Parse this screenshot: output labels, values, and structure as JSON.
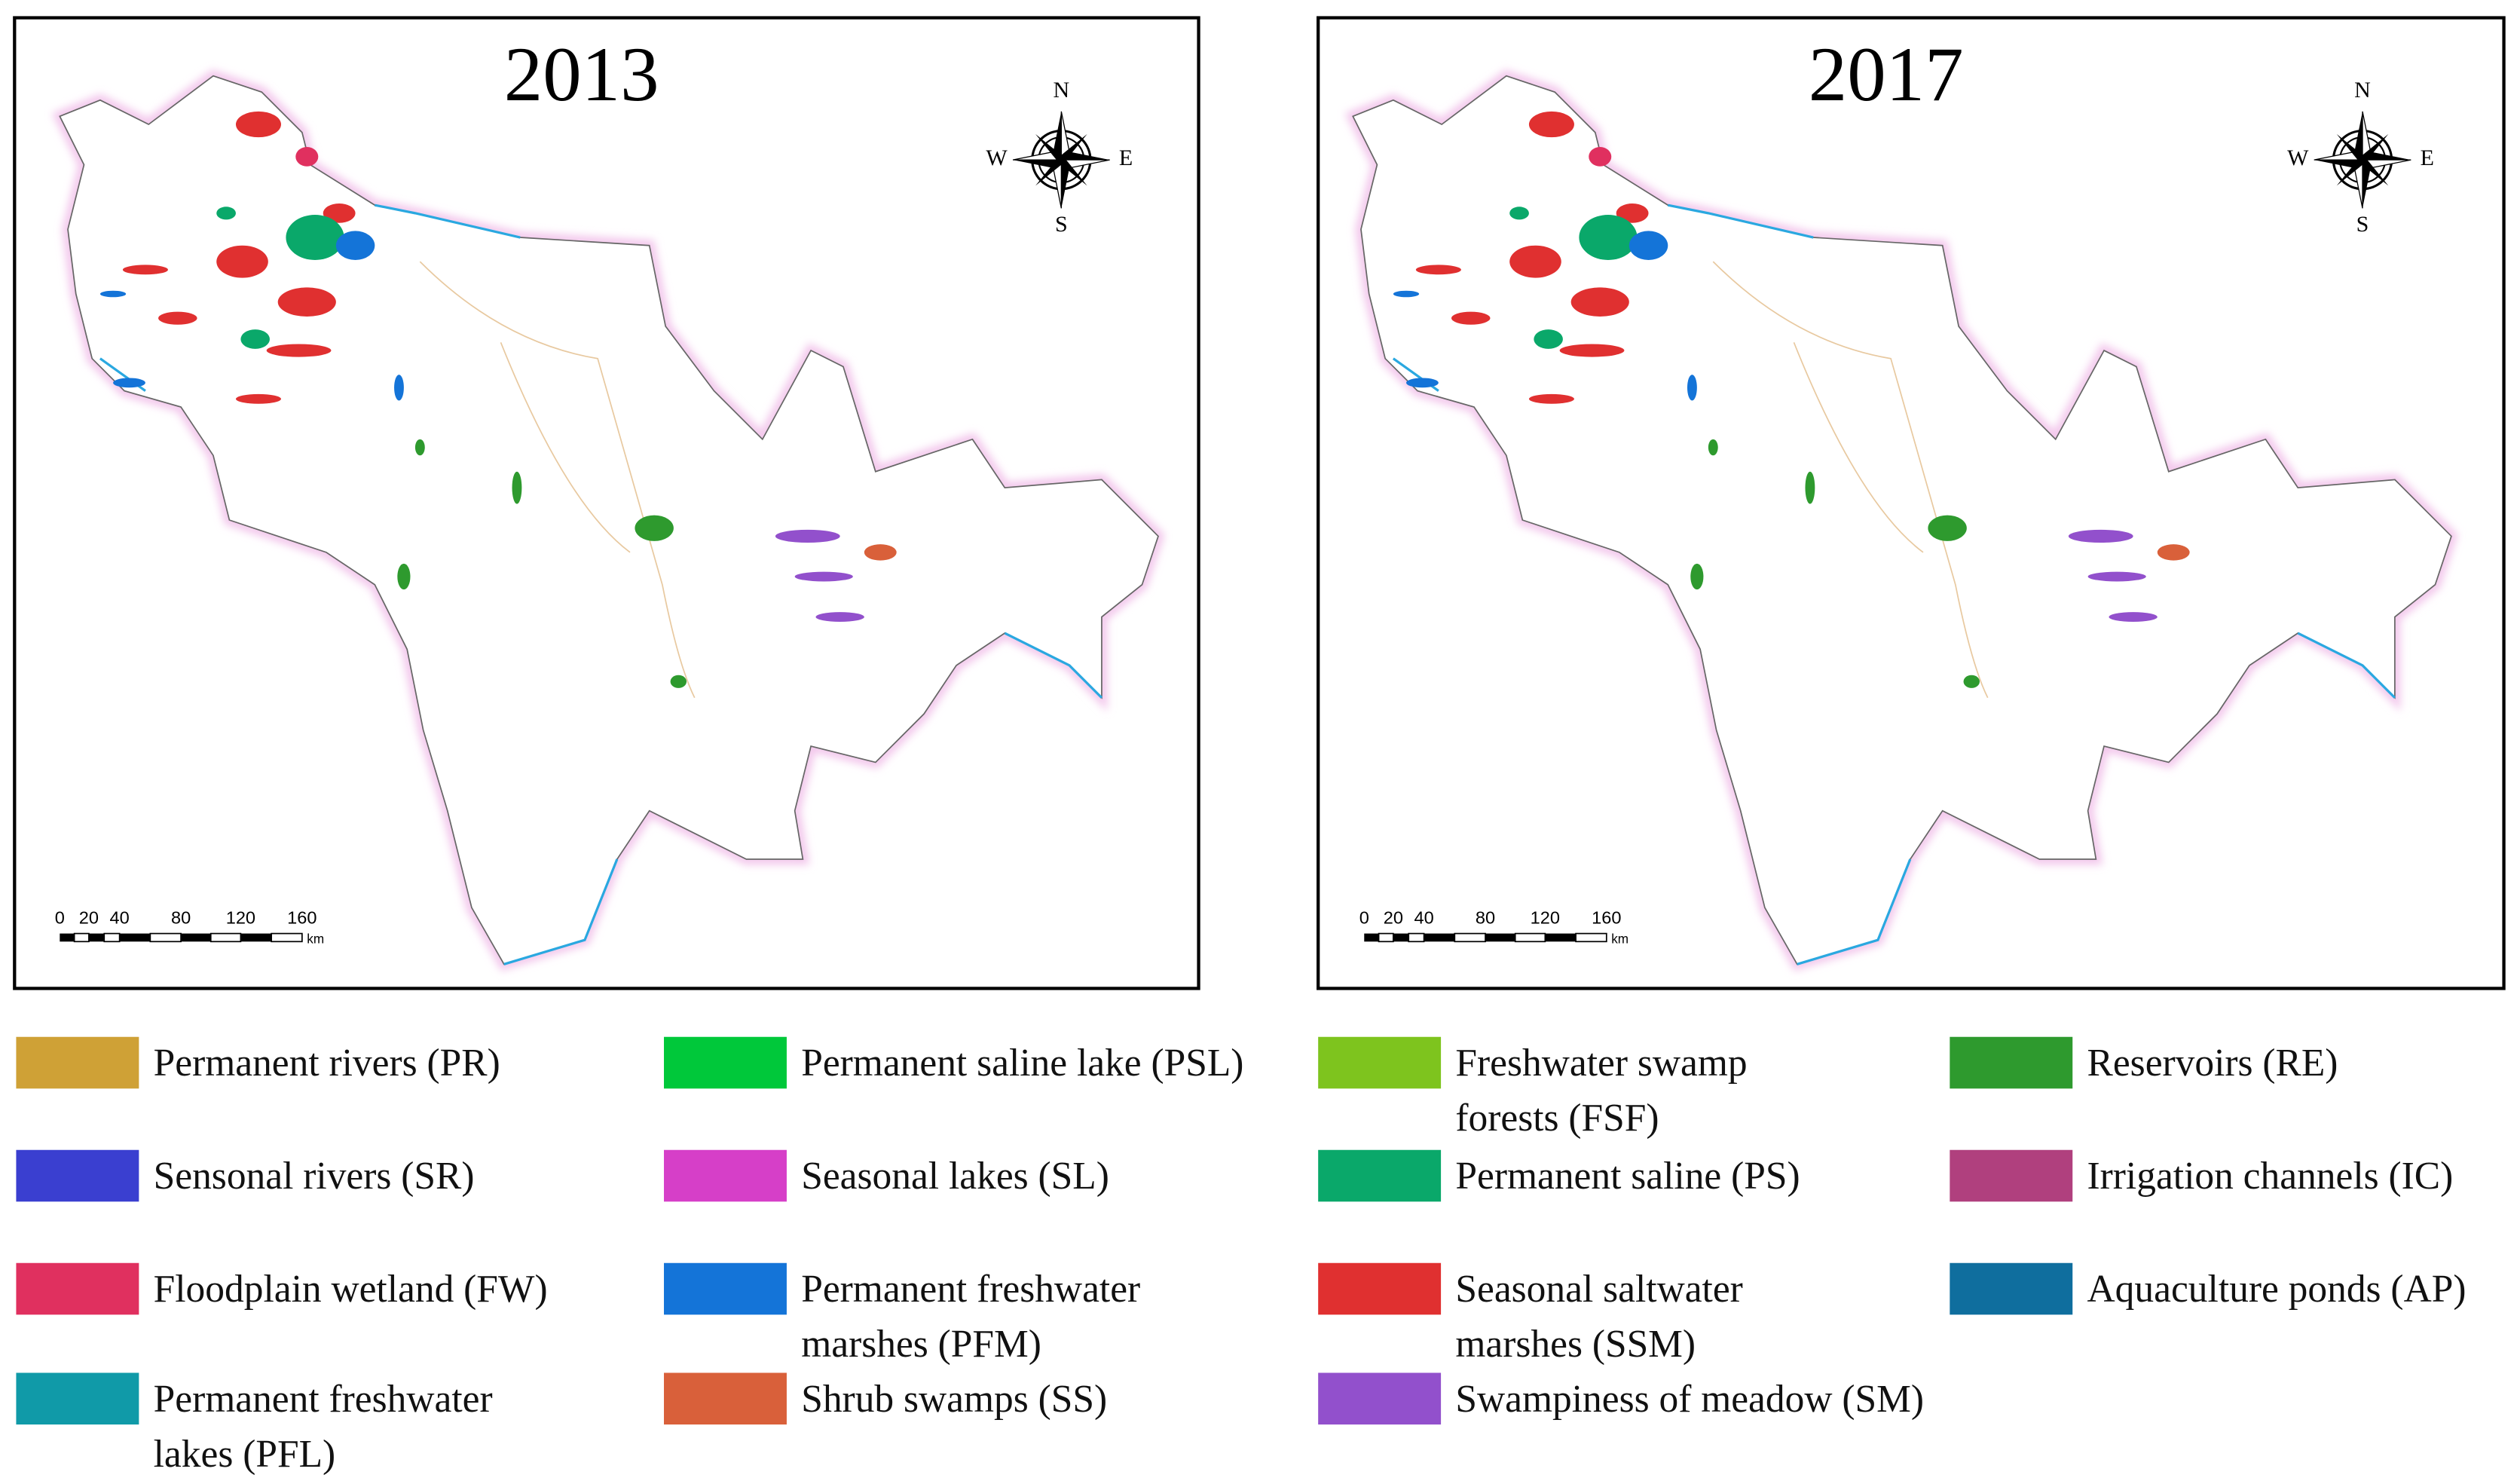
{
  "panels": [
    {
      "title": "2013",
      "compass": {
        "n": "N",
        "s": "S",
        "w": "W",
        "e": "E"
      },
      "scale_labels": [
        "0",
        "20",
        "40",
        "80",
        "120",
        "160"
      ],
      "scale_unit": "km"
    },
    {
      "title": "2017",
      "compass": {
        "n": "N",
        "s": "S",
        "w": "W",
        "e": "E"
      },
      "scale_labels": [
        "0",
        "20",
        "40",
        "80",
        "120",
        "160"
      ],
      "scale_unit": "km"
    }
  ],
  "legend": [
    {
      "label_lines": [
        "Permanent rivers (PR)"
      ],
      "color": "#cfa136"
    },
    {
      "label_lines": [
        "Permanent saline lake (PSL)"
      ],
      "color": "#00c83a"
    },
    {
      "label_lines": [
        "Freshwater swamp",
        "forests (FSF)"
      ],
      "color": "#7ec41e"
    },
    {
      "label_lines": [
        "Reservoirs (RE)"
      ],
      "color": "#2e9a2e"
    },
    {
      "label_lines": [
        "Sensonal rivers (SR)"
      ],
      "color": "#3a3fd0"
    },
    {
      "label_lines": [
        "Seasonal lakes (SL)"
      ],
      "color": "#d63fc8"
    },
    {
      "label_lines": [
        "Permanent saline (PS)"
      ],
      "color": "#0aa86a"
    },
    {
      "label_lines": [
        "Irrigation channels (IC)"
      ],
      "color": "#b0407e"
    },
    {
      "label_lines": [
        "Floodplain wetland (FW)"
      ],
      "color": "#e0305f"
    },
    {
      "label_lines": [
        "Permanent freshwater",
        "marshes (PFM)"
      ],
      "color": "#1474d8"
    },
    {
      "label_lines": [
        "Seasonal saltwater",
        "marshes (SSM)"
      ],
      "color": "#e03030"
    },
    {
      "label_lines": [
        "Aquaculture ponds (AP)"
      ],
      "color": "#0f6e9e"
    },
    {
      "label_lines": [
        "Permanent freshwater",
        "lakes (PFL)"
      ],
      "color": "#109aa8"
    },
    {
      "label_lines": [
        "Shrub swamps (SS)"
      ],
      "color": "#d9603a"
    },
    {
      "label_lines": [
        "Swampiness of meadow (SM)"
      ],
      "color": "#9250cc"
    }
  ]
}
